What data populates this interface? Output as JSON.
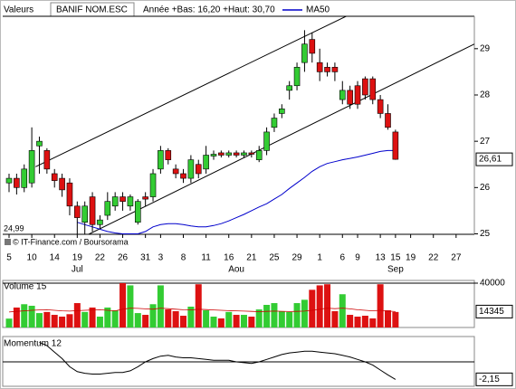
{
  "chart_data": [
    {
      "type": "candlestick",
      "header_label": "Valeurs",
      "title": "BANIF NOM.ESC",
      "subtitle": "Année +Bas: 16,20 +Haut: 30,70",
      "source": "© IT-Finance.com / Boursorama",
      "up_color": "#33cc33",
      "down_color": "#dd1111",
      "categories": [
        "5",
        null,
        null,
        "10",
        null,
        null,
        "14",
        null,
        null,
        "19",
        null,
        null,
        "22",
        null,
        null,
        "26",
        null,
        null,
        "31",
        null,
        "3",
        null,
        null,
        "8",
        null,
        null,
        "11",
        null,
        null,
        "16",
        null,
        null,
        "21",
        null,
        null,
        "25",
        null,
        null,
        "29",
        null,
        null,
        "1",
        null,
        null,
        "6",
        null,
        "9",
        null,
        null,
        "13",
        null,
        "15",
        null,
        "19",
        null,
        null,
        "22",
        null,
        null,
        "27",
        null,
        null
      ],
      "months": [
        null,
        null,
        null,
        null,
        null,
        null,
        null,
        null,
        null,
        "Jul",
        null,
        null,
        null,
        null,
        null,
        null,
        null,
        null,
        null,
        null,
        null,
        null,
        null,
        null,
        null,
        null,
        null,
        null,
        null,
        null,
        "Aou",
        null,
        null,
        null,
        null,
        null,
        null,
        null,
        null,
        null,
        null,
        null,
        null,
        null,
        null,
        null,
        null,
        null,
        null,
        null,
        null,
        "Sep",
        null,
        null,
        null,
        null,
        null,
        null,
        null,
        null,
        null,
        null
      ],
      "open": [
        26.1,
        26.2,
        26.0,
        26.1,
        26.9,
        26.8,
        26.3,
        26.2,
        26.1,
        25.6,
        25.25,
        25.8,
        25.2,
        25.4,
        25.6,
        25.8,
        25.6,
        25.25,
        25.8,
        25.8,
        26.4,
        26.8,
        26.4,
        26.3,
        26.2,
        26.5,
        26.4,
        26.68,
        26.75,
        26.7,
        26.75,
        26.7,
        26.75,
        26.6,
        26.8,
        27.3,
        27.6,
        28.1,
        28.2,
        28.7,
        29.2,
        28.7,
        28.6,
        28.6,
        27.9,
        28.1,
        28.2,
        28.35,
        28.35,
        27.9,
        27.6,
        27.2,
        null,
        null,
        null,
        null,
        null,
        null,
        null,
        null,
        null,
        null
      ],
      "high": [
        26.3,
        26.3,
        26.5,
        27.3,
        27.1,
        26.85,
        26.4,
        26.3,
        26.2,
        25.7,
        25.7,
        25.9,
        25.4,
        25.9,
        25.9,
        25.9,
        25.85,
        25.75,
        25.9,
        26.4,
        26.9,
        26.85,
        26.5,
        26.4,
        26.7,
        26.6,
        26.9,
        26.8,
        26.8,
        26.8,
        26.8,
        26.8,
        26.8,
        26.9,
        27.3,
        27.6,
        27.8,
        28.3,
        28.7,
        29.4,
        29.35,
        29.0,
        28.7,
        28.7,
        28.3,
        28.2,
        28.3,
        28.4,
        28.4,
        28.0,
        27.8,
        27.25,
        null,
        null,
        null,
        null,
        null,
        null,
        null,
        null,
        null,
        null
      ],
      "low": [
        25.9,
        25.85,
        25.9,
        26.0,
        26.3,
        26.3,
        26.0,
        25.8,
        25.4,
        25.0,
        25.0,
        25.05,
        25.1,
        25.3,
        25.5,
        25.5,
        25.5,
        25.2,
        25.6,
        25.7,
        26.3,
        26.5,
        26.2,
        26.1,
        26.1,
        26.2,
        26.3,
        26.6,
        26.65,
        26.65,
        26.65,
        26.65,
        26.65,
        26.55,
        26.7,
        27.2,
        27.5,
        27.9,
        28.1,
        28.5,
        28.7,
        28.3,
        28.4,
        28.3,
        27.8,
        27.7,
        27.7,
        27.9,
        27.8,
        27.5,
        27.25,
        26.6,
        null,
        null,
        null,
        null,
        null,
        null,
        null,
        null,
        null,
        null
      ],
      "close": [
        26.2,
        26.0,
        26.4,
        26.8,
        27.0,
        26.4,
        26.15,
        25.95,
        25.6,
        25.35,
        25.6,
        25.2,
        25.3,
        25.7,
        25.8,
        25.7,
        25.8,
        25.7,
        25.75,
        26.3,
        26.8,
        26.6,
        26.3,
        26.2,
        26.6,
        26.3,
        26.7,
        26.72,
        26.7,
        26.75,
        26.7,
        26.75,
        26.72,
        26.8,
        27.2,
        27.5,
        27.7,
        28.2,
        28.6,
        29.1,
        28.9,
        28.5,
        28.5,
        28.5,
        28.1,
        27.8,
        27.8,
        28.0,
        27.9,
        27.6,
        27.3,
        26.61,
        null,
        null,
        null,
        null,
        null,
        null,
        null,
        null,
        null,
        null
      ],
      "last_close_label": "26,61",
      "series": [
        {
          "name": "MA50",
          "color": "#0000cc",
          "values": [
            null,
            null,
            null,
            null,
            null,
            null,
            null,
            null,
            null,
            25.25,
            25.2,
            25.15,
            25.1,
            25.05,
            25.02,
            25.0,
            25.0,
            25.0,
            25.05,
            25.15,
            25.2,
            25.22,
            25.22,
            25.2,
            25.17,
            25.15,
            25.15,
            25.18,
            25.22,
            25.28,
            25.35,
            25.42,
            25.5,
            25.58,
            25.65,
            25.75,
            25.85,
            25.98,
            26.1,
            26.22,
            26.35,
            26.45,
            26.52,
            26.56,
            26.6,
            26.63,
            26.66,
            26.7,
            26.74,
            26.78,
            26.8,
            26.8,
            null,
            null,
            null,
            null,
            null,
            null,
            null,
            null,
            null,
            null
          ]
        }
      ],
      "trend_lines": [
        {
          "from": [
            3.5,
            26.45
          ],
          "to": [
            44.5,
            29.7
          ]
        },
        {
          "from": [
            10.5,
            24.99
          ],
          "to": [
            61.5,
            29.1
          ]
        }
      ],
      "ylim": [
        24.99,
        29.7
      ],
      "ylim_label": "24,99",
      "yticks": [
        25,
        26,
        27,
        28,
        29
      ]
    },
    {
      "type": "bar",
      "title": "Volume 15",
      "values": [
        8000,
        18000,
        21000,
        19600,
        13000,
        14000,
        11400,
        9800,
        12000,
        22000,
        14000,
        18000,
        9800,
        18000,
        15500,
        40000,
        38000,
        13000,
        11400,
        21000,
        38000,
        16300,
        14700,
        10600,
        18800,
        39000,
        15500,
        9800,
        8200,
        14000,
        11400,
        11400,
        9800,
        16300,
        20400,
        22000,
        14700,
        14000,
        22000,
        25000,
        34000,
        38000,
        39000,
        14700,
        30000,
        11400,
        9800,
        10600,
        8200,
        39000,
        15500,
        14000,
        null,
        null,
        null,
        null,
        null,
        null,
        null,
        null,
        null,
        null
      ],
      "ma_color": "#cc0000",
      "ma_values": [
        14000,
        14500,
        15000,
        15500,
        15800,
        16000,
        15500,
        15000,
        14800,
        15200,
        15500,
        15800,
        16000,
        15500,
        15000,
        16500,
        17500,
        17200,
        16800,
        16500,
        17500,
        17000,
        16500,
        16000,
        15800,
        16500,
        16200,
        15800,
        15500,
        15200,
        15000,
        14800,
        14500,
        14300,
        14500,
        14800,
        14600,
        14400,
        14500,
        14800,
        15500,
        16500,
        17500,
        17000,
        17500,
        16800,
        16000,
        15500,
        15000,
        15500,
        14800,
        14345,
        null,
        null,
        null,
        null,
        null,
        null,
        null,
        null,
        null,
        null
      ],
      "ylim": [
        0,
        40000
      ],
      "yticks": [
        40000
      ]
    },
    {
      "type": "line",
      "title": "Momentum 12",
      "color": "#000000",
      "values": [
        null,
        null,
        null,
        null,
        2.4,
        2.0,
        1.2,
        0.4,
        -0.6,
        -1.2,
        -1.4,
        -1.5,
        -1.5,
        -1.4,
        -1.3,
        -1.3,
        -1.1,
        -0.6,
        0.0,
        0.4,
        0.7,
        0.8,
        0.6,
        0.5,
        0.5,
        0.4,
        0.3,
        0.2,
        0.2,
        0.2,
        0.0,
        -0.1,
        -0.2,
        0.0,
        0.3,
        0.6,
        0.9,
        1.1,
        1.2,
        1.3,
        1.3,
        1.2,
        1.1,
        1.0,
        0.8,
        0.6,
        0.3,
        0.0,
        -0.4,
        -1.0,
        -1.6,
        -2.15,
        null,
        null,
        null,
        null,
        null,
        null,
        null,
        null,
        null,
        null
      ],
      "last_value_label": "-2,15",
      "reference_line": 0,
      "ylim": [
        -3,
        3
      ]
    }
  ]
}
